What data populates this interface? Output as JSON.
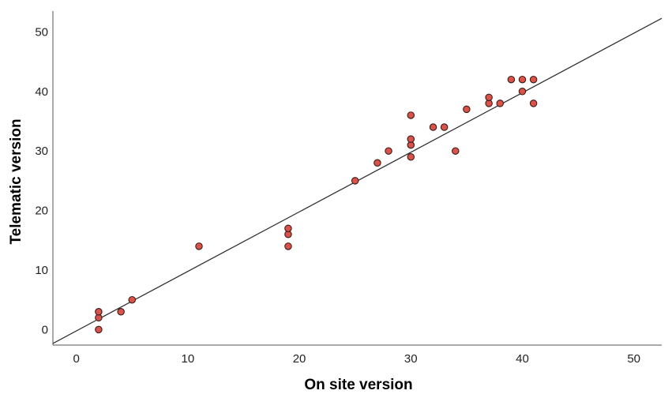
{
  "chart_data": {
    "type": "scatter",
    "title": "",
    "xlabel": "On site version",
    "ylabel": "Telematic version",
    "xlim": [
      -2.1,
      52.5
    ],
    "ylim": [
      -2.6,
      53.5
    ],
    "x_ticks": [
      0,
      10,
      20,
      30,
      40,
      50
    ],
    "y_ticks": [
      0,
      10,
      20,
      30,
      40,
      50
    ],
    "grid": false,
    "legend": "none",
    "series": [
      {
        "points": [
          {
            "x": 2,
            "y": 0
          },
          {
            "x": 2,
            "y": 2
          },
          {
            "x": 2,
            "y": 3
          },
          {
            "x": 4,
            "y": 3
          },
          {
            "x": 5,
            "y": 5
          },
          {
            "x": 11,
            "y": 14
          },
          {
            "x": 19,
            "y": 14
          },
          {
            "x": 19,
            "y": 16
          },
          {
            "x": 19,
            "y": 17
          },
          {
            "x": 25,
            "y": 25
          },
          {
            "x": 27,
            "y": 28
          },
          {
            "x": 28,
            "y": 30
          },
          {
            "x": 30,
            "y": 29
          },
          {
            "x": 30,
            "y": 31
          },
          {
            "x": 30,
            "y": 32
          },
          {
            "x": 30,
            "y": 36
          },
          {
            "x": 32,
            "y": 34
          },
          {
            "x": 33,
            "y": 34
          },
          {
            "x": 34,
            "y": 30
          },
          {
            "x": 35,
            "y": 37
          },
          {
            "x": 37,
            "y": 38
          },
          {
            "x": 37,
            "y": 39
          },
          {
            "x": 38,
            "y": 38
          },
          {
            "x": 39,
            "y": 42
          },
          {
            "x": 40,
            "y": 40
          },
          {
            "x": 40,
            "y": 42
          },
          {
            "x": 41,
            "y": 38
          },
          {
            "x": 41,
            "y": 42
          }
        ]
      }
    ],
    "fit_line": {
      "slope": 1.0,
      "intercept": -0.22
    },
    "colors": {
      "point_fill": "#d9534a",
      "point_stroke": "#3a1a16",
      "fit_line": "#333333",
      "axis": "#555555",
      "text": "#222222"
    }
  }
}
